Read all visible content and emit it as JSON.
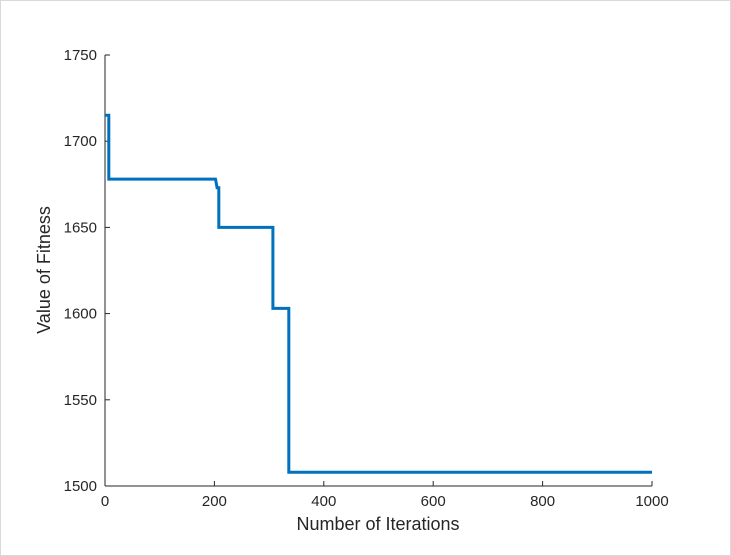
{
  "chart_data": {
    "type": "line",
    "title": "",
    "xlabel": "Number of Iterations",
    "ylabel": "Value of Fitness",
    "xlim": [
      0,
      1000
    ],
    "ylim": [
      1500,
      1750
    ],
    "x_ticks": [
      "0",
      "200",
      "400",
      "600",
      "800",
      "1000"
    ],
    "y_ticks": [
      "1500",
      "1550",
      "1600",
      "1650",
      "1700",
      "1750"
    ],
    "grid": false,
    "line_color": "#0072BD",
    "series": [
      {
        "x": [
          0,
          7,
          7,
          202,
          205,
          207,
          207,
          208,
          208,
          307,
          307,
          333,
          333,
          336,
          336,
          1000
        ],
        "y": [
          1715,
          1715,
          1678,
          1678,
          1673,
          1673,
          1673,
          1673,
          1650,
          1650,
          1603,
          1603,
          1603,
          1603,
          1508,
          1508
        ]
      }
    ]
  }
}
